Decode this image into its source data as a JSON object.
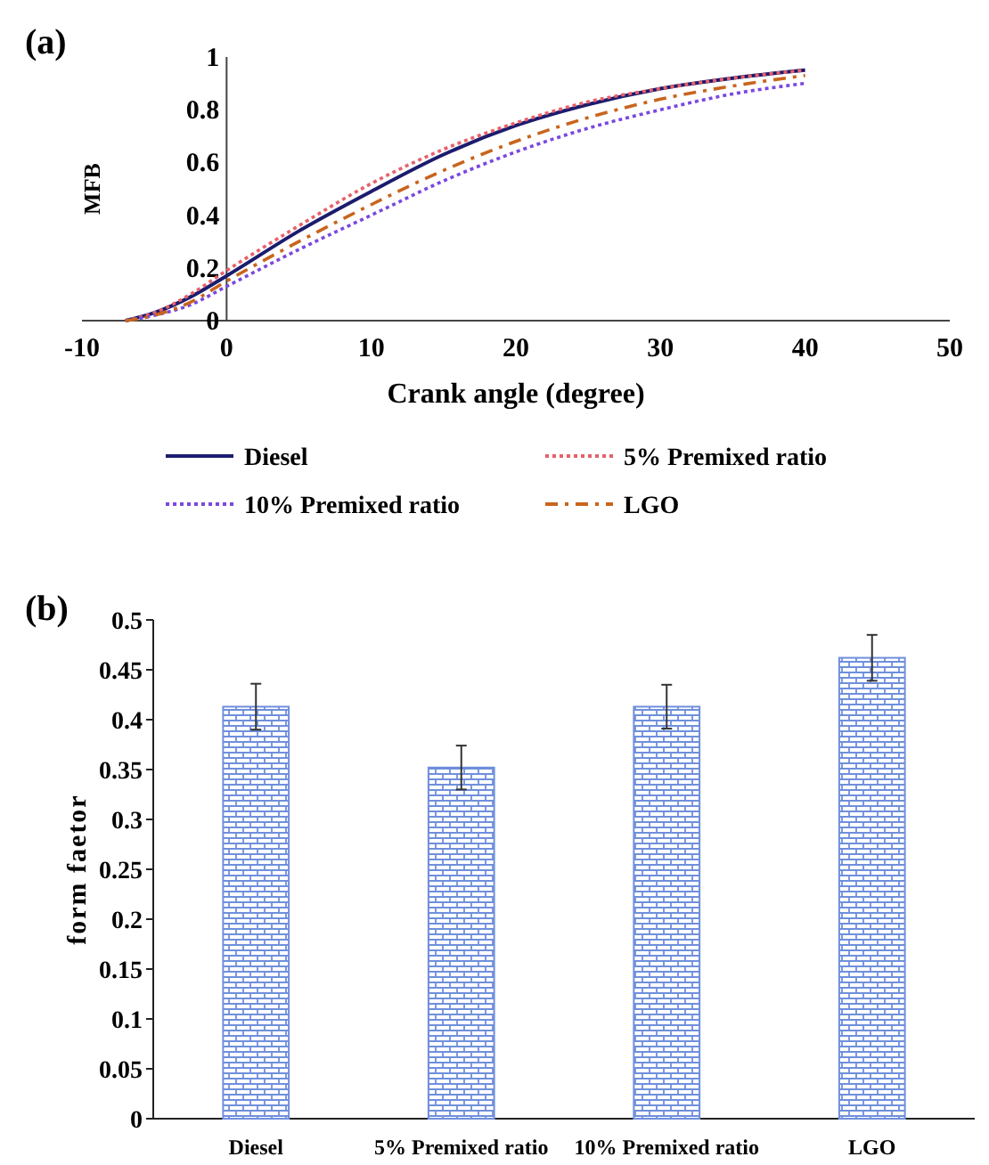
{
  "chart_data": [
    {
      "type": "line",
      "title": "(a)",
      "xlabel": "Crank angle (degree)",
      "ylabel": "MFB",
      "xlim": [
        -10,
        50
      ],
      "xticks": [
        -10,
        0,
        10,
        20,
        30,
        40,
        50
      ],
      "ylim": [
        0,
        1
      ],
      "yticks": [
        0,
        0.2,
        0.4,
        0.6,
        0.8,
        1
      ],
      "grid": false,
      "legend": "bottom",
      "marker": "none",
      "series": [
        {
          "name": "Diesel",
          "color": "#1c1c6e",
          "line_style": "solid",
          "x": [
            -7,
            -5,
            -2.5,
            0,
            5,
            10,
            15,
            20,
            25,
            30,
            35,
            40
          ],
          "values": [
            0,
            0.03,
            0.09,
            0.17,
            0.34,
            0.49,
            0.63,
            0.74,
            0.82,
            0.88,
            0.92,
            0.95
          ]
        },
        {
          "name": "5% Premixed ratio",
          "color": "#e8606a",
          "line_style": "dotted",
          "x": [
            -7,
            -5,
            -2.5,
            0,
            5,
            10,
            15,
            20,
            25,
            30,
            35,
            40
          ],
          "values": [
            0,
            0.03,
            0.1,
            0.19,
            0.36,
            0.52,
            0.65,
            0.75,
            0.83,
            0.88,
            0.92,
            0.95
          ]
        },
        {
          "name": "10% Premixed ratio",
          "color": "#7a48e0",
          "line_style": "dotted",
          "x": [
            -7,
            -5,
            -2.5,
            0,
            5,
            10,
            15,
            20,
            25,
            30,
            35,
            40
          ],
          "values": [
            0,
            0.02,
            0.06,
            0.13,
            0.27,
            0.4,
            0.53,
            0.64,
            0.73,
            0.8,
            0.86,
            0.9
          ]
        },
        {
          "name": "LGO",
          "color": "#c8651e",
          "line_style": "dashdot",
          "x": [
            -7,
            -5,
            -2.5,
            0,
            5,
            10,
            15,
            20,
            25,
            30,
            35,
            40
          ],
          "values": [
            0,
            0.02,
            0.07,
            0.15,
            0.3,
            0.44,
            0.57,
            0.68,
            0.77,
            0.84,
            0.89,
            0.93
          ]
        }
      ]
    },
    {
      "type": "bar",
      "title": "(b)",
      "ylabel": "form faetor",
      "categories": [
        "Diesel",
        "5% Premixed ratio",
        "10% Premixed ratio",
        "LGO"
      ],
      "values": [
        0.413,
        0.352,
        0.413,
        0.462
      ],
      "errors": [
        0.023,
        0.022,
        0.022,
        0.023
      ],
      "color": "#6f8fdc",
      "ylim": [
        0,
        0.5
      ],
      "yticks": [
        0,
        0.05,
        0.1,
        0.15,
        0.2,
        0.25,
        0.3,
        0.35,
        0.4,
        0.45,
        0.5
      ],
      "grid": false,
      "legend": false
    }
  ]
}
